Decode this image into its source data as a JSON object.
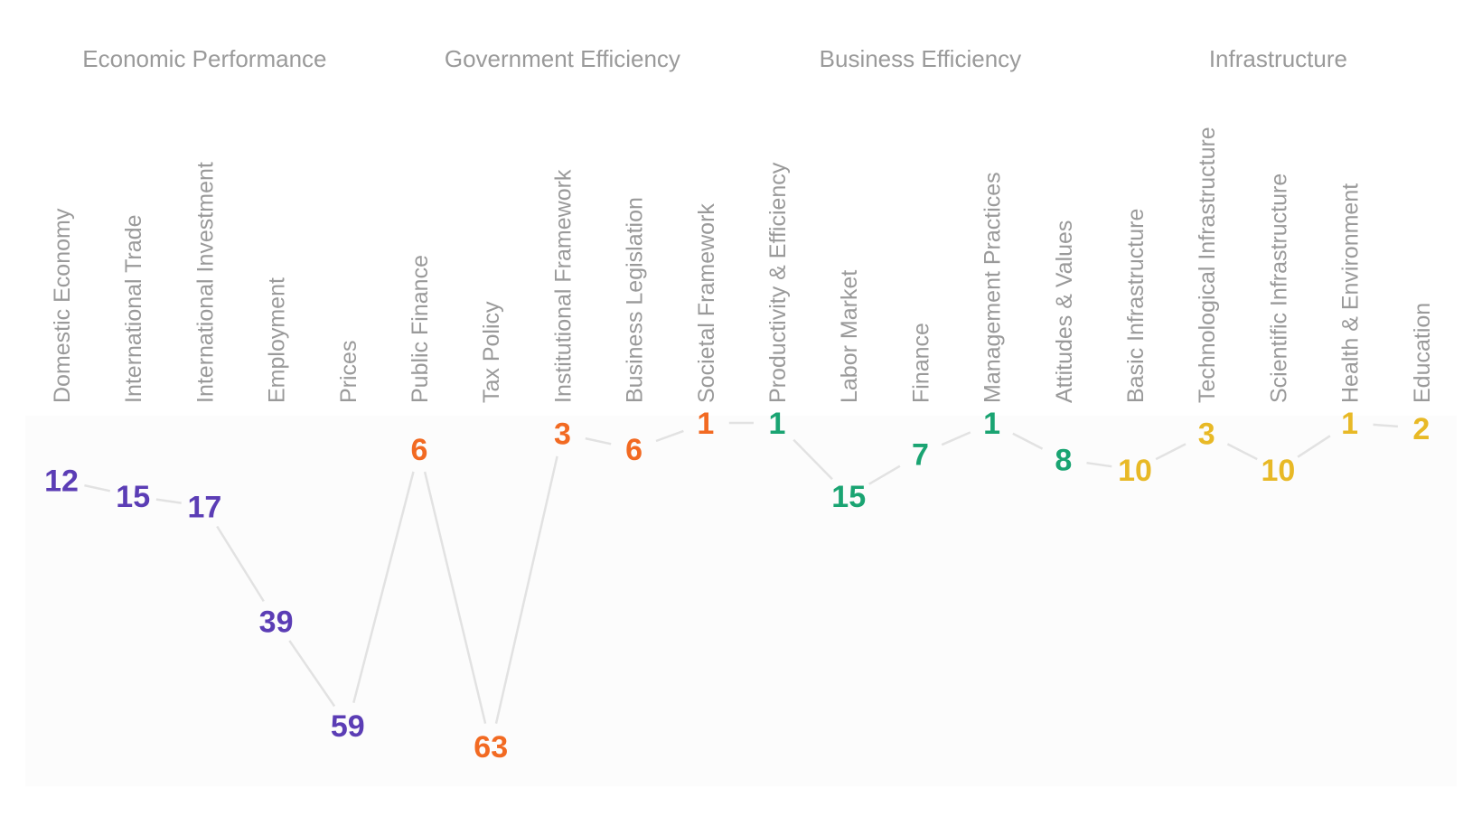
{
  "chart_data": {
    "type": "line",
    "groups": [
      {
        "name": "Economic Performance",
        "color": "#5b3db5",
        "categories": [
          "Domestic Economy",
          "International Trade",
          "International Investment",
          "Employment",
          "Prices"
        ],
        "values": [
          12,
          15,
          17,
          39,
          59
        ]
      },
      {
        "name": "Government Efficiency",
        "color": "#f26a22",
        "categories": [
          "Public Finance",
          "Tax Policy",
          "Institutional Framework",
          "Business Legislation",
          "Societal Framework"
        ],
        "values": [
          6,
          63,
          3,
          6,
          1
        ]
      },
      {
        "name": "Business Efficiency",
        "color": "#1aa472",
        "categories": [
          "Productivity & Efficiency",
          "Labor Market",
          "Finance",
          "Management Practices",
          "Attitudes & Values"
        ],
        "values": [
          1,
          15,
          7,
          1,
          8
        ]
      },
      {
        "name": "Infrastructure",
        "color": "#e8b926",
        "categories": [
          "Basic Infrastructure",
          "Technological Infrastructure",
          "Scientific Infrastructure",
          "Health & Environment",
          "Education"
        ],
        "values": [
          10,
          3,
          10,
          1,
          2
        ]
      }
    ],
    "y_axis": "rank, inverted (1 at top)",
    "ylim": [
      1,
      63
    ],
    "line_color": "#e2e2e2",
    "plot_background": "#fdfdfd",
    "grid": false,
    "legend": "none"
  }
}
